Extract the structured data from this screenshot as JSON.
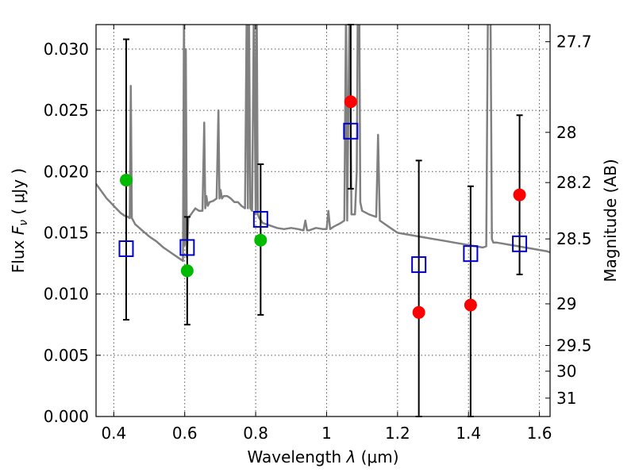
{
  "chart_data": {
    "type": "scatter",
    "xlabel_pre": "Wavelength  ",
    "xlabel_sym": "λ",
    "xlabel_post": " (μm)",
    "ylabel_pre": "Flux  ",
    "ylabel_sym": "F",
    "ylabel_sub": "ν",
    "ylabel_post": "  ( μJy )",
    "y2label": "Magnitude (AB)",
    "xlim": [
      0.35,
      1.63
    ],
    "ylim": [
      0.0,
      0.032
    ],
    "grid": true,
    "x_ticks": [
      {
        "value": 0.4,
        "label": "0.4"
      },
      {
        "value": 0.6,
        "label": "0.6"
      },
      {
        "value": 0.8,
        "label": "0.8"
      },
      {
        "value": 1.0,
        "label": "1"
      },
      {
        "value": 1.2,
        "label": "1.2"
      },
      {
        "value": 1.4,
        "label": "1.4"
      },
      {
        "value": 1.6,
        "label": "1.6"
      }
    ],
    "y_ticks": [
      {
        "value": 0.0,
        "label": "0.000"
      },
      {
        "value": 0.005,
        "label": "0.005"
      },
      {
        "value": 0.01,
        "label": "0.010"
      },
      {
        "value": 0.015,
        "label": "0.015"
      },
      {
        "value": 0.02,
        "label": "0.020"
      },
      {
        "value": 0.025,
        "label": "0.025"
      },
      {
        "value": 0.03,
        "label": "0.030"
      }
    ],
    "y2_ticks": [
      {
        "flux": 0.0306,
        "label": "27.7"
      },
      {
        "flux": 0.0232,
        "label": "28"
      },
      {
        "flux": 0.0191,
        "label": "28.2"
      },
      {
        "flux": 0.0145,
        "label": "28.5"
      },
      {
        "flux": 0.0092,
        "label": "29"
      },
      {
        "flux": 0.0058,
        "label": "29.5"
      },
      {
        "flux": 0.0037,
        "label": "30"
      },
      {
        "flux": 0.0015,
        "label": "31"
      }
    ],
    "colors": {
      "model": "#808080",
      "observed": "#0000cc",
      "green": "#00bb00",
      "red": "#ff0000",
      "errorbar": "#000000"
    },
    "model_spectrum": {
      "x": [
        0.35,
        0.36,
        0.37,
        0.38,
        0.39,
        0.4,
        0.41,
        0.42,
        0.43,
        0.44,
        0.445,
        0.448,
        0.451,
        0.455,
        0.46,
        0.48,
        0.5,
        0.52,
        0.54,
        0.56,
        0.58,
        0.595,
        0.598,
        0.6,
        0.603,
        0.606,
        0.61,
        0.62,
        0.63,
        0.64,
        0.65,
        0.655,
        0.658,
        0.661,
        0.665,
        0.67,
        0.68,
        0.69,
        0.695,
        0.698,
        0.701,
        0.705,
        0.71,
        0.72,
        0.73,
        0.74,
        0.75,
        0.76,
        0.77,
        0.775,
        0.778,
        0.781,
        0.785,
        0.79,
        0.795,
        0.8,
        0.803,
        0.806,
        0.81,
        0.815,
        0.82,
        0.84,
        0.86,
        0.88,
        0.9,
        0.92,
        0.935,
        0.94,
        0.945,
        0.95,
        0.97,
        0.99,
        1.0,
        1.005,
        1.01,
        1.02,
        1.04,
        1.05,
        1.055,
        1.058,
        1.065,
        1.07,
        1.08,
        1.085,
        1.088,
        1.092,
        1.095,
        1.1,
        1.12,
        1.14,
        1.145,
        1.15,
        1.16,
        1.18,
        1.2,
        1.22,
        1.24,
        1.26,
        1.28,
        1.3,
        1.32,
        1.34,
        1.36,
        1.38,
        1.4,
        1.42,
        1.44,
        1.45,
        1.455,
        1.458,
        1.462,
        1.466,
        1.47,
        1.48,
        1.5,
        1.52,
        1.54,
        1.56,
        1.58,
        1.6,
        1.62,
        1.63
      ],
      "y": [
        0.019,
        0.0186,
        0.0182,
        0.0178,
        0.0175,
        0.0172,
        0.0169,
        0.0166,
        0.0164,
        0.0163,
        0.0162,
        0.027,
        0.0162,
        0.016,
        0.0157,
        0.0152,
        0.0147,
        0.0143,
        0.0138,
        0.0134,
        0.013,
        0.0127,
        0.0335,
        0.014,
        0.03,
        0.013,
        0.0162,
        0.0166,
        0.017,
        0.0168,
        0.0168,
        0.024,
        0.017,
        0.018,
        0.0172,
        0.0175,
        0.0176,
        0.0178,
        0.025,
        0.0178,
        0.0185,
        0.0178,
        0.018,
        0.018,
        0.0178,
        0.0175,
        0.0175,
        0.0172,
        0.017,
        0.034,
        0.017,
        0.034,
        0.017,
        0.0168,
        0.034,
        0.0165,
        0.034,
        0.0165,
        0.0162,
        0.016,
        0.0158,
        0.0156,
        0.0154,
        0.0153,
        0.0154,
        0.0153,
        0.0152,
        0.016,
        0.0152,
        0.0152,
        0.0154,
        0.0153,
        0.0153,
        0.0168,
        0.0153,
        0.0155,
        0.0158,
        0.016,
        0.034,
        0.016,
        0.034,
        0.0165,
        0.0165,
        0.02,
        0.034,
        0.034,
        0.0175,
        0.0168,
        0.0165,
        0.0163,
        0.023,
        0.016,
        0.0158,
        0.0154,
        0.015,
        0.0149,
        0.0148,
        0.0147,
        0.0146,
        0.0145,
        0.0144,
        0.0143,
        0.0142,
        0.0141,
        0.014,
        0.0139,
        0.0138,
        0.0139,
        0.034,
        0.034,
        0.034,
        0.0145,
        0.0142,
        0.0142,
        0.0141,
        0.014,
        0.0139,
        0.0138,
        0.0137,
        0.0136,
        0.0135,
        0.0134
      ]
    },
    "observed": [
      {
        "x": 0.435,
        "y": 0.0137,
        "err_lo": 0.0079,
        "err_hi": 0.0308
      },
      {
        "x": 0.607,
        "y": 0.0138,
        "err_lo": 0.0075,
        "err_hi": 0.0163
      },
      {
        "x": 0.814,
        "y": 0.0161,
        "err_lo": 0.0083,
        "err_hi": 0.0206
      },
      {
        "x": 1.068,
        "y": 0.0233,
        "err_lo": 0.0186,
        "err_hi": 0.032
      },
      {
        "x": 1.26,
        "y": 0.0124,
        "err_lo": 0.0,
        "err_hi": 0.0209
      },
      {
        "x": 1.406,
        "y": 0.0133,
        "err_lo": 0.0,
        "err_hi": 0.0188
      },
      {
        "x": 1.544,
        "y": 0.0141,
        "err_lo": 0.0116,
        "err_hi": 0.0246
      }
    ],
    "model_green": [
      {
        "x": 0.435,
        "y": 0.0193
      },
      {
        "x": 0.607,
        "y": 0.0119
      },
      {
        "x": 0.814,
        "y": 0.0144
      }
    ],
    "model_red": [
      {
        "x": 1.068,
        "y": 0.0257
      },
      {
        "x": 1.26,
        "y": 0.0085
      },
      {
        "x": 1.406,
        "y": 0.0091
      },
      {
        "x": 1.544,
        "y": 0.0181
      }
    ]
  }
}
